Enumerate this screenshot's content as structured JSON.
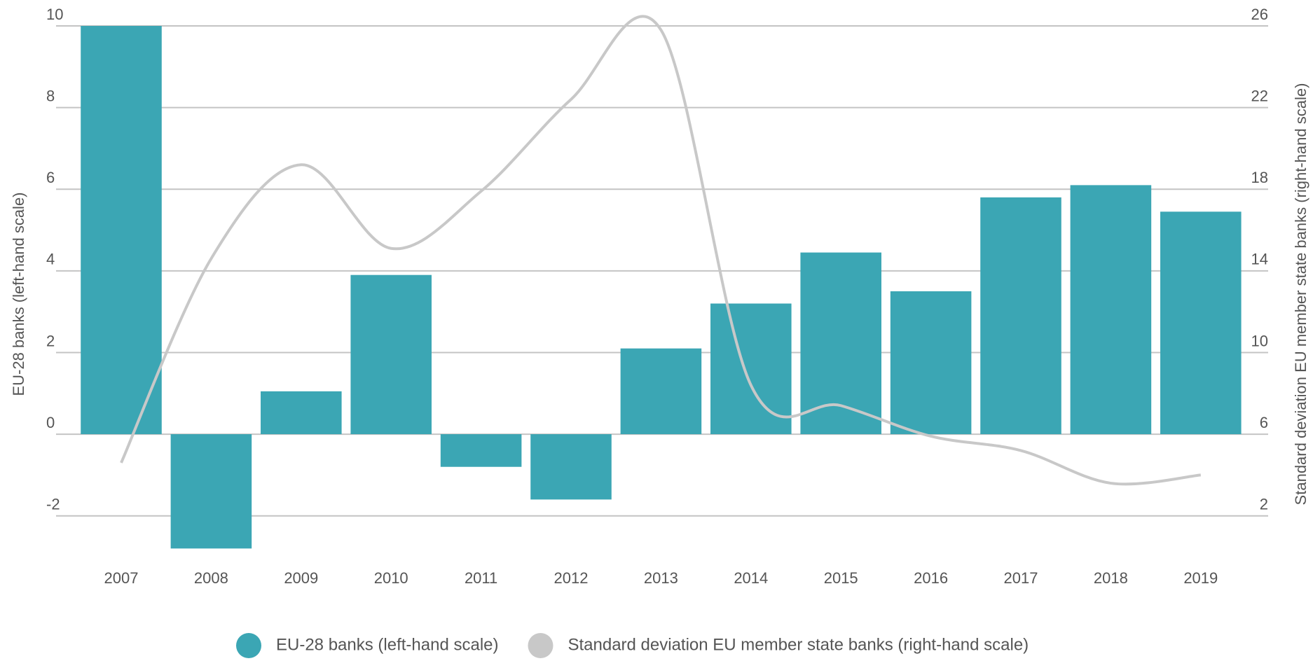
{
  "chart_data": {
    "type": "bar-line",
    "categories": [
      "2007",
      "2008",
      "2009",
      "2010",
      "2011",
      "2012",
      "2013",
      "2014",
      "2015",
      "2016",
      "2017",
      "2018",
      "2019"
    ],
    "series": [
      {
        "name": "EU-28 banks (left-hand scale)",
        "type": "bar",
        "color": "#3ba6b4",
        "values": [
          10,
          -2.8,
          1.05,
          3.9,
          -0.8,
          -1.6,
          2.1,
          3.2,
          4.45,
          3.5,
          5.8,
          6.1,
          5.45
        ]
      },
      {
        "name": "Standard deviation EU member state banks (right-hand scale)",
        "type": "line",
        "axis": "y2",
        "color": "#c8c8c8",
        "values": [
          4.6,
          14.6,
          19.2,
          15.1,
          17.9,
          22.4,
          25.8,
          8.4,
          7.4,
          5.9,
          5.2,
          3.6,
          4.0
        ]
      }
    ],
    "ylabel": "EU-28 banks (left-hand scale)",
    "y2label": "Standard deviation EU member state banks (right-hand scale)",
    "ylim": [
      -3,
      10
    ],
    "yticks": [
      -2,
      0,
      2,
      4,
      6,
      8,
      10
    ],
    "y2lim": [
      0,
      26
    ],
    "y2ticks": [
      2,
      6,
      10,
      14,
      18,
      22,
      26
    ],
    "grid": true,
    "legend": "bottom"
  }
}
